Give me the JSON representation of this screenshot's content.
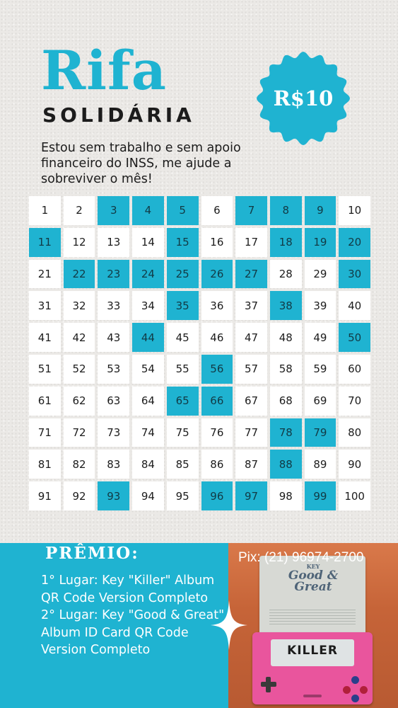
{
  "title": "Rifa",
  "subtitle": "SOLIDÁRIA",
  "price": "R$10",
  "description": "Estou sem trabalho e sem apoio financeiro do INSS, me ajude a sobreviver o mês!",
  "colors": {
    "accent": "#1fb3d1",
    "background": "#ebe9e6",
    "text": "#1c1c1c"
  },
  "grid": {
    "numbers": [
      "1",
      "2",
      "3",
      "4",
      "5",
      "6",
      "7",
      "8",
      "9",
      "10",
      "11",
      "12",
      "13",
      "14",
      "15",
      "16",
      "17",
      "18",
      "19",
      "20",
      "21",
      "22",
      "23",
      "24",
      "25",
      "26",
      "27",
      "28",
      "29",
      "30",
      "31",
      "32",
      "33",
      "34",
      "35",
      "36",
      "37",
      "38",
      "39",
      "40",
      "41",
      "42",
      "43",
      "44",
      "45",
      "46",
      "47",
      "48",
      "49",
      "50",
      "51",
      "52",
      "53",
      "54",
      "55",
      "56",
      "57",
      "58",
      "59",
      "60",
      "61",
      "62",
      "63",
      "64",
      "65",
      "66",
      "67",
      "68",
      "69",
      "70",
      "71",
      "72",
      "73",
      "74",
      "75",
      "76",
      "77",
      "78",
      "79",
      "80",
      "81",
      "82",
      "83",
      "84",
      "85",
      "86",
      "87",
      "88",
      "89",
      "90",
      "91",
      "92",
      "93",
      "94",
      "95",
      "96",
      "97",
      "98",
      "99",
      "100"
    ],
    "taken": [
      3,
      4,
      5,
      7,
      8,
      9,
      11,
      15,
      18,
      19,
      20,
      22,
      23,
      24,
      25,
      26,
      27,
      30,
      35,
      38,
      44,
      50,
      56,
      65,
      66,
      78,
      79,
      88,
      93,
      96,
      97,
      99
    ]
  },
  "prize": {
    "heading": "PRÊMIO:",
    "first": "1° Lugar: Key \"Killer\" Album QR Code Version Completo",
    "second": "2° Lugar: Key \"Good & Great\" Album ID Card QR Code Version Completo"
  },
  "pix": "Pix: (21) 96974-2700",
  "photo": {
    "box1_logo": "Good & Great",
    "box1_small": "KEY",
    "box2_screen": "KILLER"
  }
}
